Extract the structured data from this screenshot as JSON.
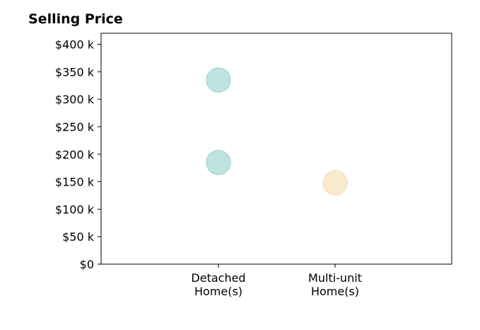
{
  "chart_data": {
    "type": "scatter",
    "title": "Selling Price",
    "xlabel": "",
    "ylabel": "",
    "categories": [
      "Detached\nHome(s)",
      "Multi-unit\nHome(s)"
    ],
    "ylim": [
      0,
      420000
    ],
    "yticks": [
      0,
      50000,
      100000,
      150000,
      200000,
      250000,
      300000,
      350000,
      400000
    ],
    "ytick_labels": [
      "$0",
      "$50 k",
      "$100 k",
      "$150 k",
      "$200 k",
      "$250 k",
      "$300 k",
      "$350 k",
      "$400 k"
    ],
    "grid": false,
    "points": [
      {
        "category": "Detached\nHome(s)",
        "value": 335000,
        "color": "#a8dad6"
      },
      {
        "category": "Detached\nHome(s)",
        "value": 185000,
        "color": "#a8dad6"
      },
      {
        "category": "Multi-unit\nHome(s)",
        "value": 148000,
        "color": "#f5e3bf"
      }
    ]
  }
}
